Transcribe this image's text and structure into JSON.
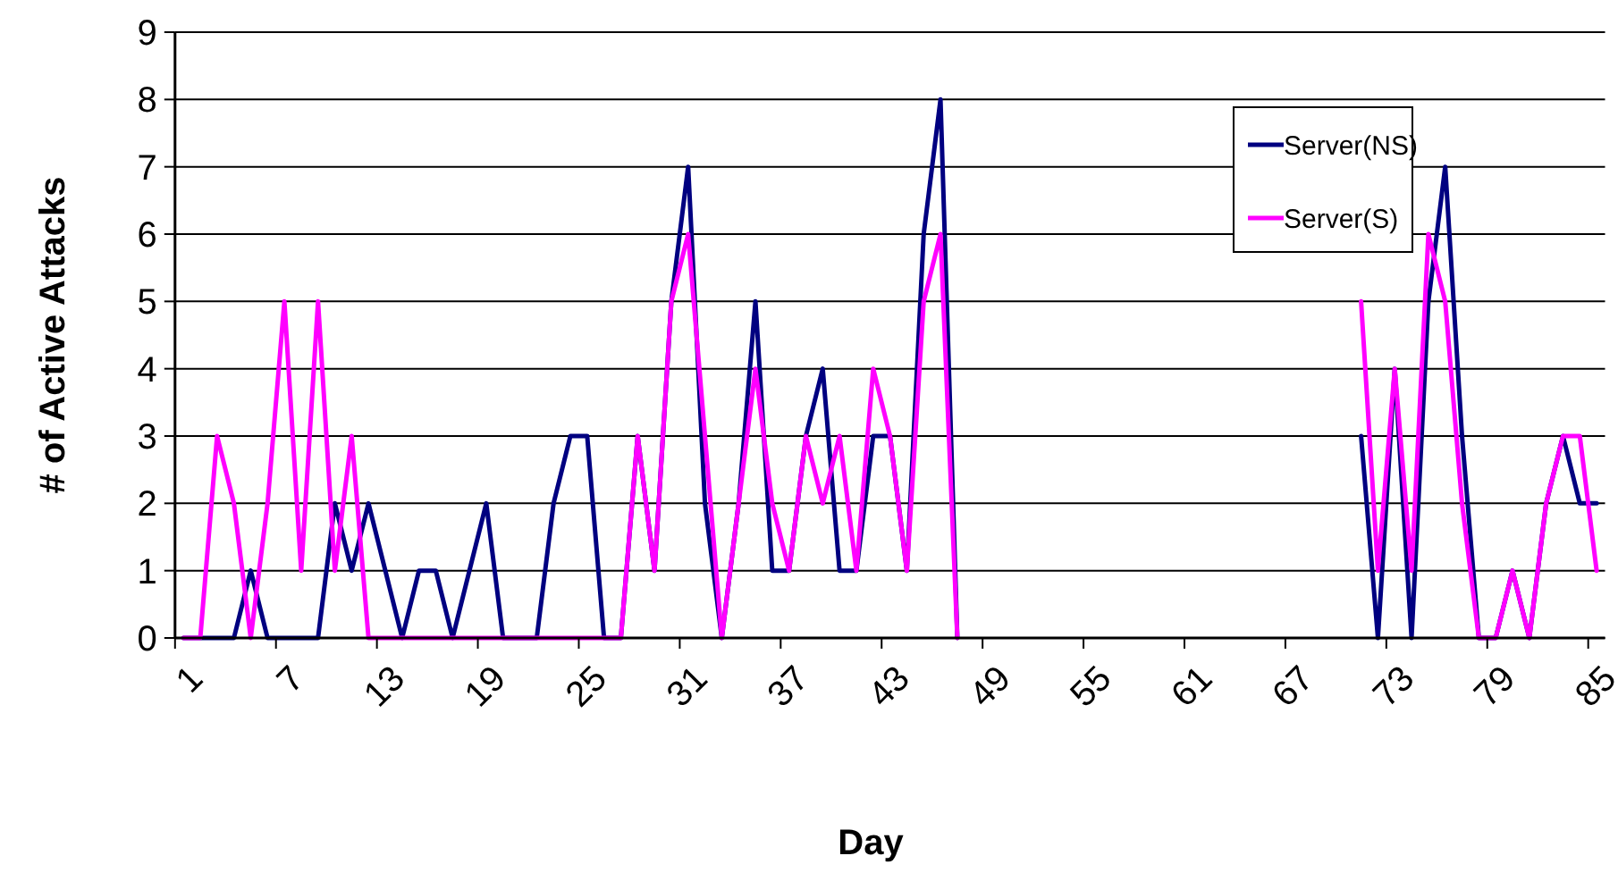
{
  "chart_data": {
    "type": "line",
    "xlabel": "Day",
    "ylabel": "# of Active Attacks",
    "categories": [
      "1",
      null,
      null,
      null,
      null,
      null,
      "7",
      null,
      null,
      null,
      null,
      null,
      "13",
      null,
      null,
      null,
      null,
      null,
      "19",
      null,
      null,
      null,
      null,
      null,
      "25",
      null,
      null,
      null,
      null,
      null,
      "31",
      null,
      null,
      null,
      null,
      null,
      "37",
      null,
      null,
      null,
      null,
      null,
      "43",
      null,
      null,
      null,
      null,
      null,
      "49",
      null,
      null,
      null,
      null,
      null,
      "55",
      null,
      null,
      null,
      null,
      null,
      "61",
      null,
      null,
      null,
      null,
      null,
      "67",
      null,
      null,
      null,
      null,
      null,
      "73",
      null,
      null,
      null,
      null,
      null,
      "79",
      null,
      null,
      null,
      null,
      null,
      "85"
    ],
    "series": [
      {
        "name": "Server(NS)",
        "color": "#000080",
        "values": [
          0,
          0,
          0,
          0,
          1,
          0,
          0,
          0,
          0,
          2,
          1,
          2,
          1,
          0,
          1,
          1,
          0,
          1,
          2,
          0,
          0,
          0,
          2,
          3,
          3,
          0,
          0,
          3,
          1,
          5,
          7,
          2,
          0,
          2,
          5,
          1,
          1,
          3,
          4,
          1,
          1,
          3,
          3,
          1,
          6,
          8,
          0,
          null,
          null,
          null,
          null,
          null,
          null,
          null,
          null,
          null,
          null,
          null,
          null,
          null,
          null,
          null,
          null,
          null,
          null,
          null,
          null,
          null,
          null,
          null,
          3,
          0,
          4,
          0,
          5,
          7,
          3,
          0,
          0,
          1,
          0,
          2,
          3,
          2,
          2
        ]
      },
      {
        "name": "Server(S)",
        "color": "#ff00ff",
        "values": [
          0,
          0,
          3,
          2,
          0,
          2,
          5,
          1,
          5,
          1,
          3,
          0,
          0,
          0,
          0,
          0,
          0,
          0,
          0,
          0,
          0,
          0,
          0,
          0,
          0,
          0,
          0,
          3,
          1,
          5,
          6,
          3,
          0,
          2,
          4,
          2,
          1,
          3,
          2,
          3,
          1,
          4,
          3,
          1,
          5,
          6,
          0,
          null,
          null,
          null,
          null,
          null,
          null,
          null,
          null,
          null,
          null,
          null,
          null,
          null,
          null,
          null,
          null,
          null,
          null,
          null,
          null,
          null,
          null,
          null,
          5,
          1,
          4,
          1,
          6,
          5,
          2,
          0,
          0,
          1,
          0,
          2,
          3,
          3,
          1
        ]
      }
    ],
    "ylim": [
      0,
      9
    ],
    "yticks": [
      0,
      1,
      2,
      3,
      4,
      5,
      6,
      7,
      8,
      9
    ],
    "grid": "y",
    "legend": "top right",
    "marker": "none",
    "line_style": "solid"
  }
}
